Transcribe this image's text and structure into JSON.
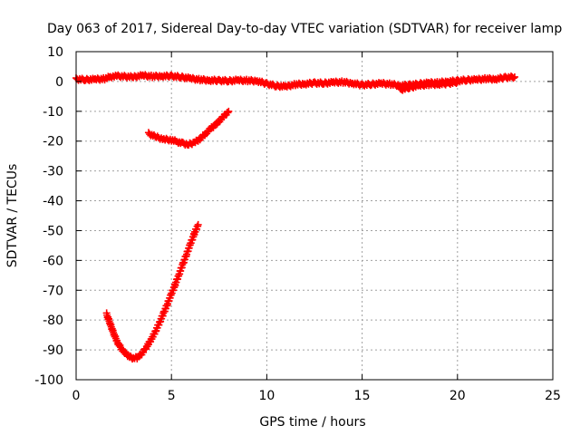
{
  "chart_data": {
    "type": "scatter",
    "title": "Day 063 of 2017, Sidereal Day-to-day VTEC variation (SDTVAR) for receiver lamp",
    "xlabel": "GPS time / hours",
    "ylabel": "SDTVAR / TECUs",
    "xlim": [
      0,
      25
    ],
    "ylim": [
      -100,
      10
    ],
    "xticks": [
      0,
      5,
      10,
      15,
      20,
      25
    ],
    "yticks": [
      10,
      0,
      -10,
      -20,
      -30,
      -40,
      -50,
      -60,
      -70,
      -80,
      -90,
      -100
    ],
    "grid": true,
    "marker_color": "#ff0000",
    "series": [
      {
        "values": [
          [
            0,
            0.8
          ],
          [
            0.5,
            0.6
          ],
          [
            1,
            0.7
          ],
          [
            1.5,
            0.9
          ],
          [
            1.8,
            1.6
          ],
          [
            2.2,
            1.8
          ],
          [
            3,
            1.5
          ],
          [
            3.5,
            2
          ],
          [
            4,
            1.7
          ],
          [
            4.5,
            1.8
          ],
          [
            5,
            1.8
          ],
          [
            5.5,
            1.5
          ],
          [
            6,
            1
          ],
          [
            6.5,
            0.6
          ],
          [
            7,
            0.4
          ],
          [
            7.5,
            0.3
          ],
          [
            8,
            0.2
          ],
          [
            8.5,
            0.4
          ],
          [
            9,
            0.3
          ],
          [
            9.5,
            0.2
          ],
          [
            10,
            -0.8
          ],
          [
            10.5,
            -1.5
          ],
          [
            11,
            -1.7
          ],
          [
            11.5,
            -1
          ],
          [
            12,
            -0.8
          ],
          [
            12.5,
            -0.5
          ],
          [
            13,
            -0.6
          ],
          [
            13.5,
            -0.3
          ],
          [
            14,
            -0.2
          ],
          [
            14.5,
            -0.6
          ],
          [
            15,
            -1.2
          ],
          [
            15.5,
            -0.9
          ],
          [
            16,
            -0.7
          ],
          [
            16.5,
            -0.9
          ],
          [
            17,
            -1.4
          ],
          [
            17.5,
            -1.2
          ],
          [
            18,
            -0.8
          ],
          [
            18.5,
            -0.5
          ],
          [
            19,
            -0.4
          ],
          [
            19.5,
            0
          ],
          [
            20,
            0.2
          ],
          [
            20.5,
            0.5
          ],
          [
            21,
            0.6
          ],
          [
            21.5,
            0.9
          ],
          [
            22,
            0.8
          ],
          [
            22.5,
            1.3
          ],
          [
            23,
            1.5
          ]
        ]
      },
      {
        "values": [
          [
            17,
            -2.8
          ],
          [
            17.5,
            -2.0
          ],
          [
            18,
            -1.4
          ],
          [
            18.5,
            -1.0
          ],
          [
            19,
            -0.9
          ],
          [
            19.5,
            -0.7
          ],
          [
            20,
            -0.2
          ]
        ]
      },
      {
        "values": [
          [
            3.8,
            -17.5
          ],
          [
            4.2,
            -18.6
          ],
          [
            4.6,
            -19.4
          ],
          [
            5,
            -19.6
          ],
          [
            5.3,
            -20.2
          ],
          [
            5.6,
            -20.8
          ],
          [
            5.9,
            -21.1
          ],
          [
            6.2,
            -20.5
          ],
          [
            6.5,
            -19.2
          ],
          [
            6.8,
            -17.4
          ],
          [
            7.1,
            -15.6
          ],
          [
            7.4,
            -14.0
          ],
          [
            7.7,
            -12.0
          ],
          [
            8.0,
            -10.0
          ]
        ]
      },
      {
        "values": [
          [
            1.6,
            -78
          ],
          [
            1.8,
            -81.5
          ],
          [
            2.0,
            -85
          ],
          [
            2.2,
            -87.8
          ],
          [
            2.4,
            -89.8
          ],
          [
            2.6,
            -91.3
          ],
          [
            2.8,
            -92.3
          ],
          [
            3.0,
            -92.8
          ],
          [
            3.2,
            -92.6
          ],
          [
            3.4,
            -91.6
          ],
          [
            3.6,
            -90.0
          ],
          [
            3.8,
            -88.0
          ],
          [
            4.0,
            -85.8
          ],
          [
            4.2,
            -83.2
          ],
          [
            4.4,
            -80.5
          ],
          [
            4.6,
            -77.5
          ],
          [
            4.8,
            -74.4
          ],
          [
            5.0,
            -71.2
          ],
          [
            5.2,
            -68.0
          ],
          [
            5.4,
            -64.6
          ],
          [
            5.6,
            -61.2
          ],
          [
            5.8,
            -57.8
          ],
          [
            6.0,
            -54.4
          ],
          [
            6.2,
            -51.0
          ],
          [
            6.4,
            -48.0
          ]
        ]
      }
    ]
  }
}
